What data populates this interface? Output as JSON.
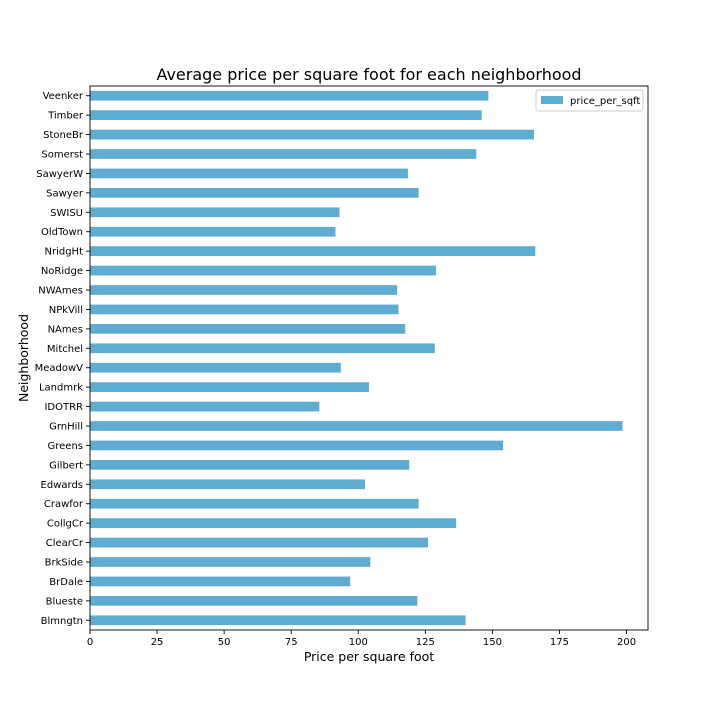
{
  "chart_data": {
    "type": "bar",
    "orientation": "horizontal",
    "title": "Average price per square foot for each neighborhood",
    "xlabel": "Price per square foot",
    "ylabel": "Neighborhood",
    "xlim": [
      0,
      208
    ],
    "xticks": [
      0,
      25,
      50,
      75,
      100,
      125,
      150,
      175,
      200
    ],
    "grid": false,
    "legend_position": "top-right",
    "bar_color": "#5eaccf",
    "categories": [
      "Blmngtn",
      "Blueste",
      "BrDale",
      "BrkSide",
      "ClearCr",
      "CollgCr",
      "Crawfor",
      "Edwards",
      "Gilbert",
      "Greens",
      "GrnHill",
      "IDOTRR",
      "Landmrk",
      "MeadowV",
      "Mitchel",
      "NAmes",
      "NPkVill",
      "NWAmes",
      "NoRidge",
      "NridgHt",
      "OldTown",
      "SWISU",
      "Sawyer",
      "SawyerW",
      "Somerst",
      "StoneBr",
      "Timber",
      "Veenker"
    ],
    "series": [
      {
        "name": "price_per_sqft",
        "values": [
          140,
          122,
          97,
          104.5,
          126,
          136.5,
          122.5,
          102.5,
          119,
          154,
          198.5,
          85.5,
          104,
          93.5,
          128.5,
          117.5,
          115,
          114.5,
          129,
          166,
          91.5,
          93,
          122.5,
          118.5,
          144,
          165.5,
          146,
          148.5
        ]
      }
    ]
  }
}
